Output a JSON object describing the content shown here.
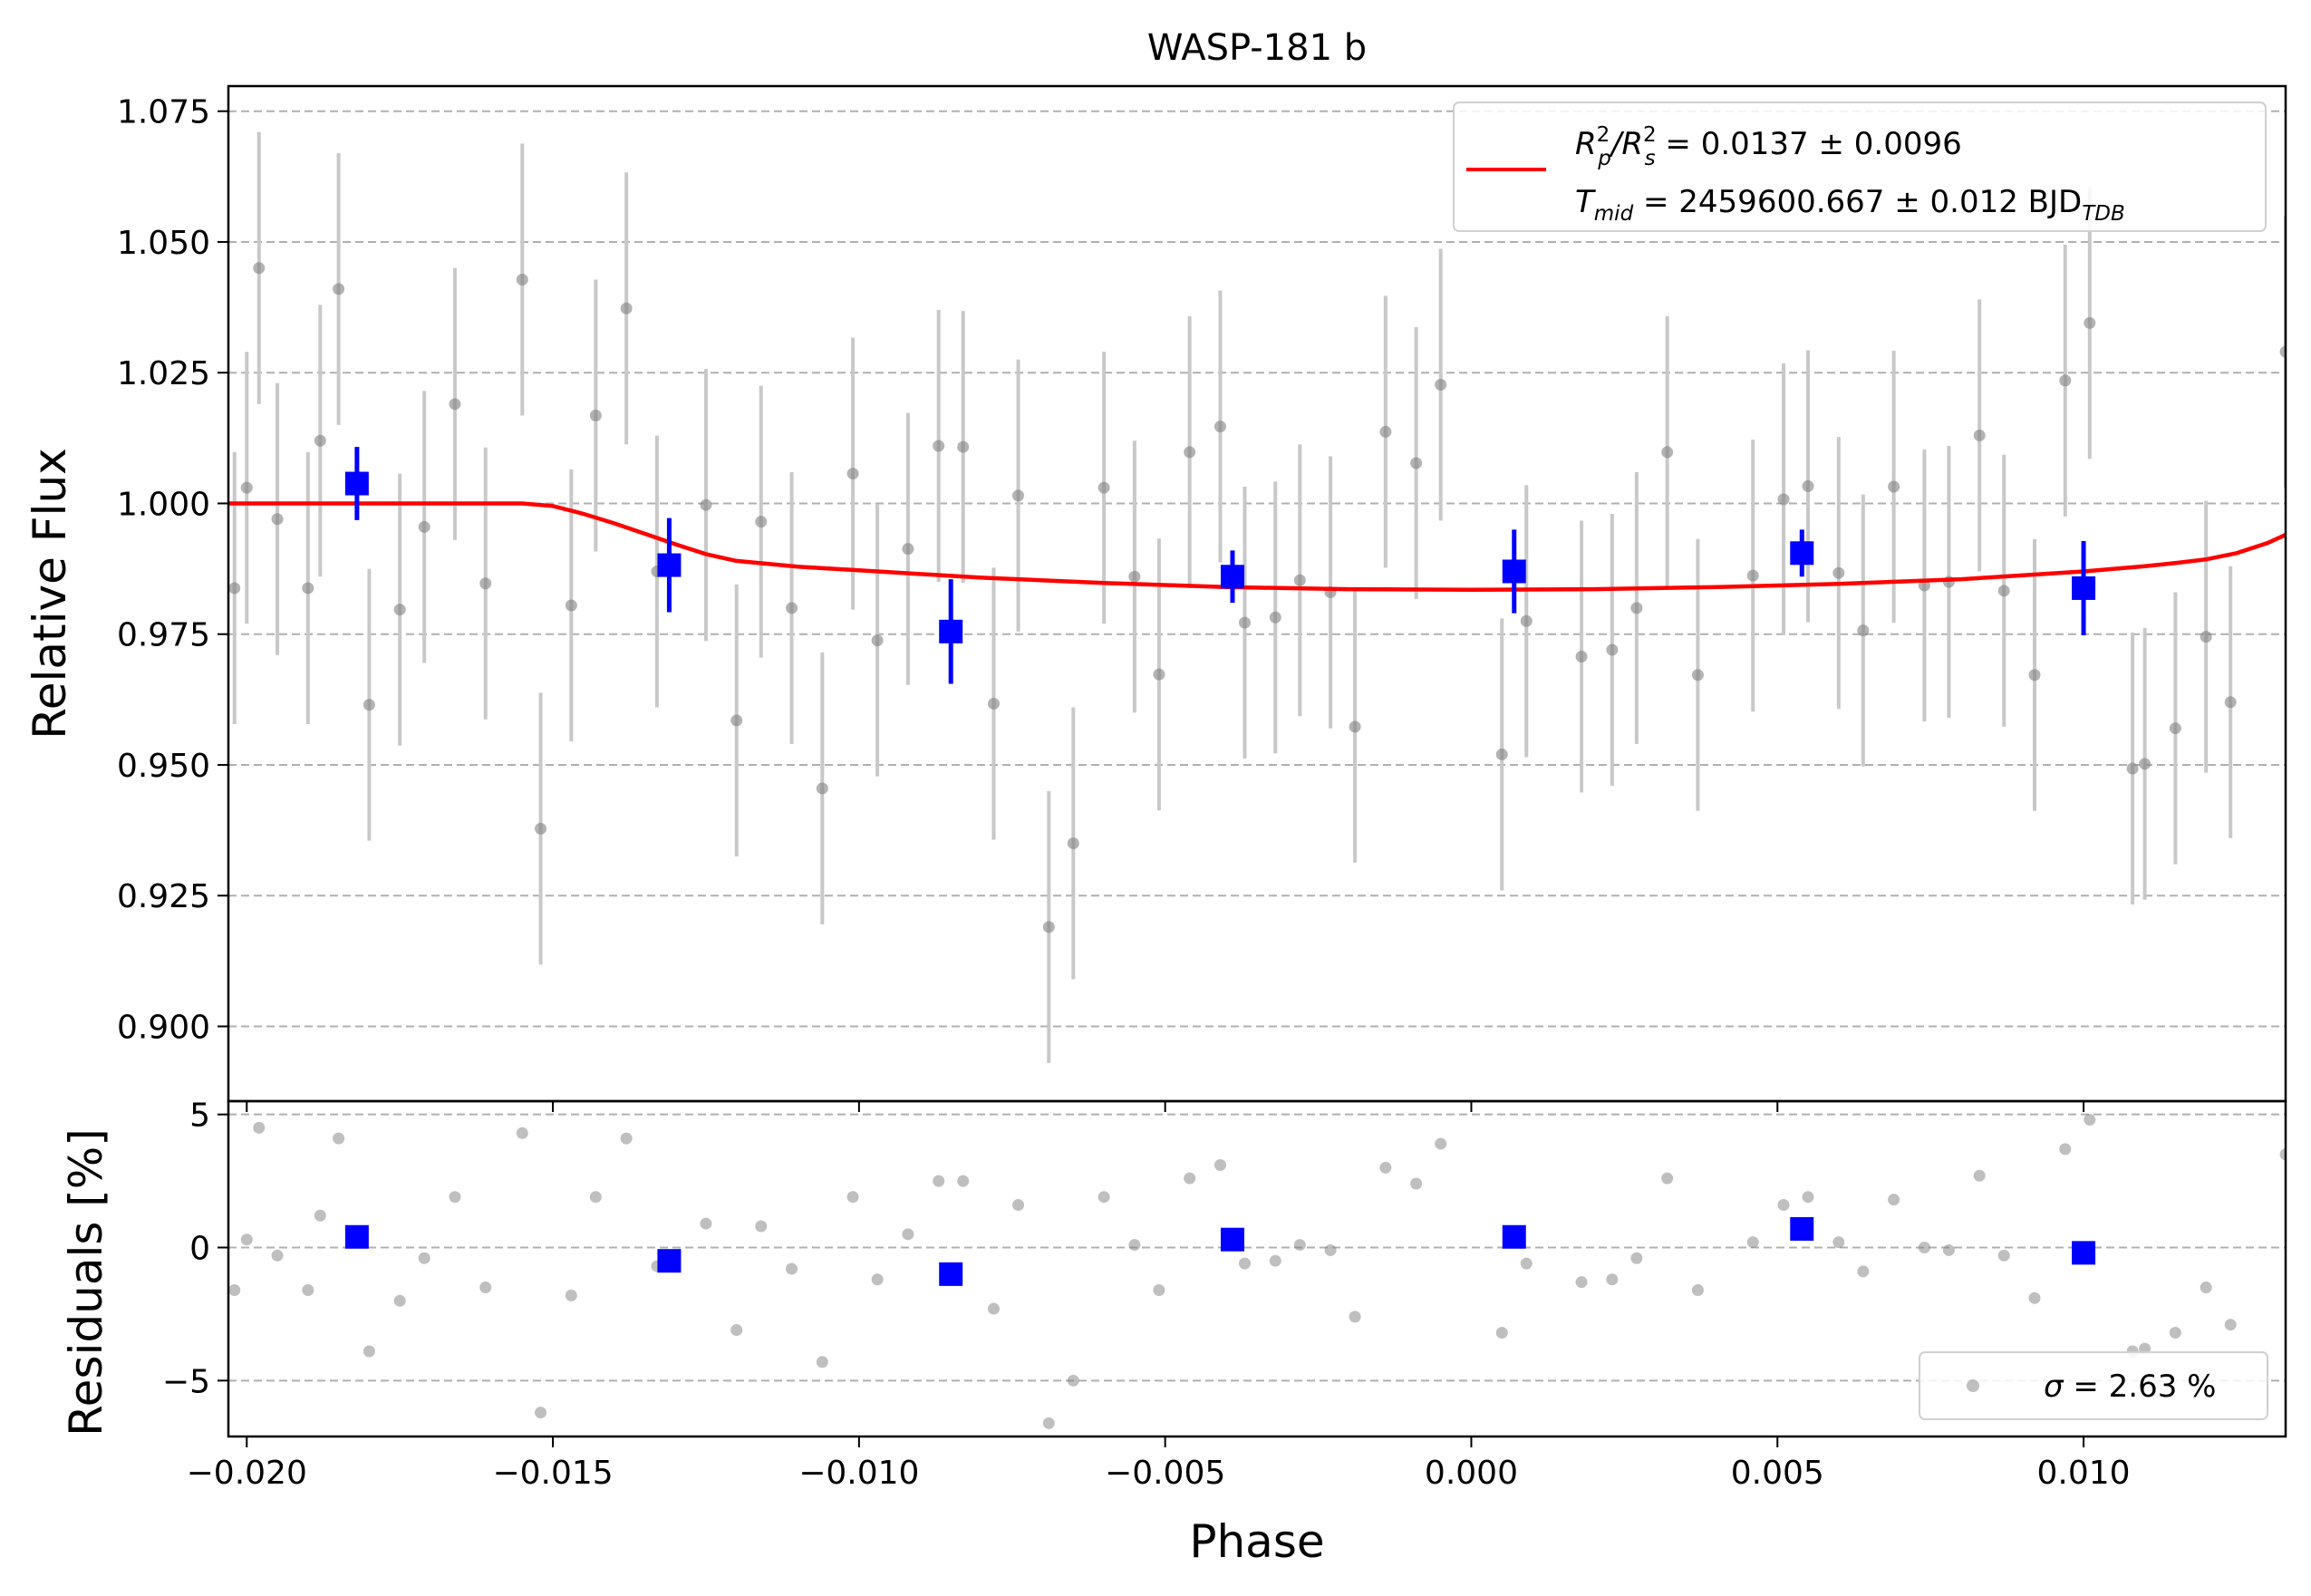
{
  "chart_data": [
    {
      "panel": "main",
      "type": "scatter",
      "title": "WASP-181 b",
      "xlabel": "",
      "ylabel": "Relative Flux",
      "xlim": [
        -0.0203,
        0.0133
      ],
      "ylim": [
        0.8857,
        1.0798
      ],
      "grid": "horizontal dashed",
      "x_ticks": [
        -0.02,
        -0.015,
        -0.01,
        -0.005,
        0.0,
        0.005,
        0.01
      ],
      "x_tick_labels": [
        "",
        "",
        "",
        "",
        "",
        "",
        ""
      ],
      "y_ticks": [
        0.9,
        0.925,
        0.95,
        0.975,
        1.0,
        1.025,
        1.05,
        1.075
      ],
      "y_tick_labels": [
        "0.900",
        "0.925",
        "0.950",
        "0.975",
        "1.000",
        "1.025",
        "1.050",
        "1.075"
      ],
      "legend": {
        "placement": "top-right",
        "line1": {
          "r": "R",
          "p": "p",
          "two": "2",
          "slash": "/R",
          "s": "s",
          "rest": " = 0.0137 ± 0.0096"
        },
        "line2": {
          "t": "T",
          "mid": "mid",
          "rest": " = 2459600.667 ± 0.012 BJD",
          "tdb": "TDB"
        }
      },
      "series": [
        {
          "kind": "unbinned",
          "color": "#808080",
          "error_color": "#c8c8c8",
          "err": 0.026,
          "x": [
            -0.0202,
            -0.02,
            -0.0198,
            -0.0195,
            -0.019,
            -0.0188,
            -0.0185,
            -0.018,
            -0.0175,
            -0.0171,
            -0.0166,
            -0.0161,
            -0.0155,
            -0.0152,
            -0.0147,
            -0.0143,
            -0.0138,
            -0.0133,
            -0.0125,
            -0.012,
            -0.0116,
            -0.0111,
            -0.0106,
            -0.0101,
            -0.0097,
            -0.0092,
            -0.0087,
            -0.0083,
            -0.0078,
            -0.0074,
            -0.0069,
            -0.0065,
            -0.006,
            -0.0055,
            -0.0051,
            -0.0046,
            -0.0041,
            -0.0037,
            -0.0032,
            -0.0028,
            -0.0023,
            -0.0019,
            -0.0014,
            -0.0009,
            -0.0005,
            0.0005,
            0.0009,
            0.0018,
            0.0023,
            0.0027,
            0.0032,
            0.0037,
            0.0046,
            0.0051,
            0.0055,
            0.006,
            0.0064,
            0.0069,
            0.0074,
            0.0078,
            0.0083,
            0.0087,
            0.0092,
            0.0097,
            0.0101,
            0.0108,
            0.011,
            0.0115,
            0.012,
            0.0124,
            0.0133
          ],
          "y": [
            0.9838,
            1.003,
            1.045,
            0.997,
            0.9838,
            1.012,
            1.041,
            0.9615,
            0.9797,
            0.9955,
            1.019,
            0.9847,
            1.0428,
            0.9378,
            0.9805,
            1.0168,
            1.0373,
            0.987,
            0.9997,
            0.9585,
            0.9965,
            0.98,
            0.9455,
            1.0057,
            0.9738,
            0.9913,
            1.011,
            1.0108,
            0.9617,
            1.0015,
            0.919,
            0.935,
            1.003,
            0.986,
            0.9673,
            1.0098,
            1.0147,
            0.9772,
            0.9782,
            0.9853,
            0.983,
            0.9573,
            1.0137,
            1.0077,
            1.0227,
            0.952,
            0.9775,
            0.9707,
            0.972,
            0.98,
            1.0098,
            0.9672,
            0.9862,
            1.0008,
            1.0033,
            0.9867,
            0.9757,
            1.0032,
            0.9843,
            0.985,
            1.013,
            0.9833,
            0.9672,
            1.0235,
            1.0345,
            0.9493,
            0.9502,
            0.957,
            0.9745,
            0.962,
            1.029
          ]
        },
        {
          "kind": "binned",
          "color": "#0000ff",
          "x": [
            -0.0182,
            -0.0131,
            -0.0085,
            -0.0039,
            0.0007,
            0.0054,
            0.01
          ],
          "y": [
            1.0038,
            0.9882,
            0.9755,
            0.986,
            0.987,
            0.9905,
            0.9838
          ],
          "err": [
            0.007,
            0.009,
            0.01,
            0.005,
            0.008,
            0.0045,
            0.009
          ]
        },
        {
          "kind": "model",
          "color": "#ff0000",
          "x": [
            -0.0203,
            -0.019,
            -0.0175,
            -0.016,
            -0.0155,
            -0.015,
            -0.0145,
            -0.014,
            -0.0135,
            -0.013,
            -0.0125,
            -0.012,
            -0.011,
            -0.01,
            -0.008,
            -0.006,
            -0.004,
            -0.002,
            0.0,
            0.002,
            0.004,
            0.006,
            0.008,
            0.01,
            0.011,
            0.0115,
            0.012,
            0.0125,
            0.013,
            0.0133
          ],
          "y": [
            1.0,
            1.0,
            1.0,
            1.0,
            1.0,
            0.9995,
            0.998,
            0.9962,
            0.9942,
            0.9922,
            0.9903,
            0.989,
            0.9879,
            0.9872,
            0.9858,
            0.9848,
            0.984,
            0.9836,
            0.9835,
            0.9836,
            0.984,
            0.9846,
            0.9855,
            0.987,
            0.988,
            0.9886,
            0.9893,
            0.9905,
            0.9924,
            0.994
          ]
        }
      ]
    },
    {
      "panel": "residuals",
      "type": "scatter",
      "xlabel": "Phase",
      "ylabel": "Residuals [%]",
      "xlim": [
        -0.0203,
        0.0133
      ],
      "ylim": [
        -7.1,
        5.5
      ],
      "grid": "horizontal dashed",
      "x_ticks": [
        -0.02,
        -0.015,
        -0.01,
        -0.005,
        0.0,
        0.005,
        0.01
      ],
      "x_tick_labels": [
        "−0.020",
        "−0.015",
        "−0.010",
        "−0.005",
        "0.000",
        "0.005",
        "0.010"
      ],
      "y_ticks": [
        -5,
        0,
        5
      ],
      "y_tick_labels": [
        "−5",
        "0",
        "5"
      ],
      "legend": {
        "placement": "bottom-right",
        "sigma": "σ",
        "rest": " = 2.63 %"
      },
      "series": [
        {
          "kind": "unbinned",
          "color": "#808080",
          "x": [
            -0.0202,
            -0.02,
            -0.0198,
            -0.0195,
            -0.019,
            -0.0188,
            -0.0185,
            -0.018,
            -0.0175,
            -0.0171,
            -0.0166,
            -0.0161,
            -0.0155,
            -0.0152,
            -0.0147,
            -0.0143,
            -0.0138,
            -0.0133,
            -0.0125,
            -0.012,
            -0.0116,
            -0.0111,
            -0.0106,
            -0.0101,
            -0.0097,
            -0.0092,
            -0.0087,
            -0.0083,
            -0.0078,
            -0.0074,
            -0.0069,
            -0.0065,
            -0.006,
            -0.0055,
            -0.0051,
            -0.0046,
            -0.0041,
            -0.0037,
            -0.0032,
            -0.0028,
            -0.0023,
            -0.0019,
            -0.0014,
            -0.0009,
            -0.0005,
            0.0005,
            0.0009,
            0.0018,
            0.0023,
            0.0027,
            0.0032,
            0.0037,
            0.0046,
            0.0051,
            0.0055,
            0.006,
            0.0064,
            0.0069,
            0.0074,
            0.0078,
            0.0083,
            0.0087,
            0.0092,
            0.0097,
            0.0101,
            0.0108,
            0.011,
            0.0115,
            0.012,
            0.0124,
            0.0133
          ],
          "y": [
            -1.6,
            0.3,
            4.5,
            -0.3,
            -1.6,
            1.2,
            4.1,
            -3.9,
            -2.0,
            -0.4,
            1.9,
            -1.5,
            4.3,
            -6.2,
            -1.8,
            1.9,
            4.1,
            -0.7,
            0.9,
            -3.1,
            0.8,
            -0.8,
            -4.3,
            1.9,
            -1.2,
            0.5,
            2.5,
            2.5,
            -2.3,
            1.6,
            -6.6,
            -5.0,
            1.9,
            0.1,
            -1.6,
            2.6,
            3.1,
            -0.6,
            -0.5,
            0.1,
            -0.1,
            -2.6,
            3.0,
            2.4,
            3.9,
            -3.2,
            -0.6,
            -1.3,
            -1.2,
            -0.4,
            2.6,
            -1.6,
            0.2,
            1.6,
            1.9,
            0.2,
            -0.9,
            1.8,
            0.0,
            -0.1,
            2.7,
            -0.3,
            -1.9,
            3.7,
            4.8,
            -3.9,
            -3.8,
            -3.2,
            -1.5,
            -2.9,
            3.5
          ]
        },
        {
          "kind": "binned",
          "color": "#0000ff",
          "x": [
            -0.0182,
            -0.0131,
            -0.0085,
            -0.0039,
            0.0007,
            0.0054,
            0.01
          ],
          "y": [
            0.4,
            -0.5,
            -1.0,
            0.3,
            0.4,
            0.7,
            -0.2
          ]
        }
      ]
    }
  ]
}
